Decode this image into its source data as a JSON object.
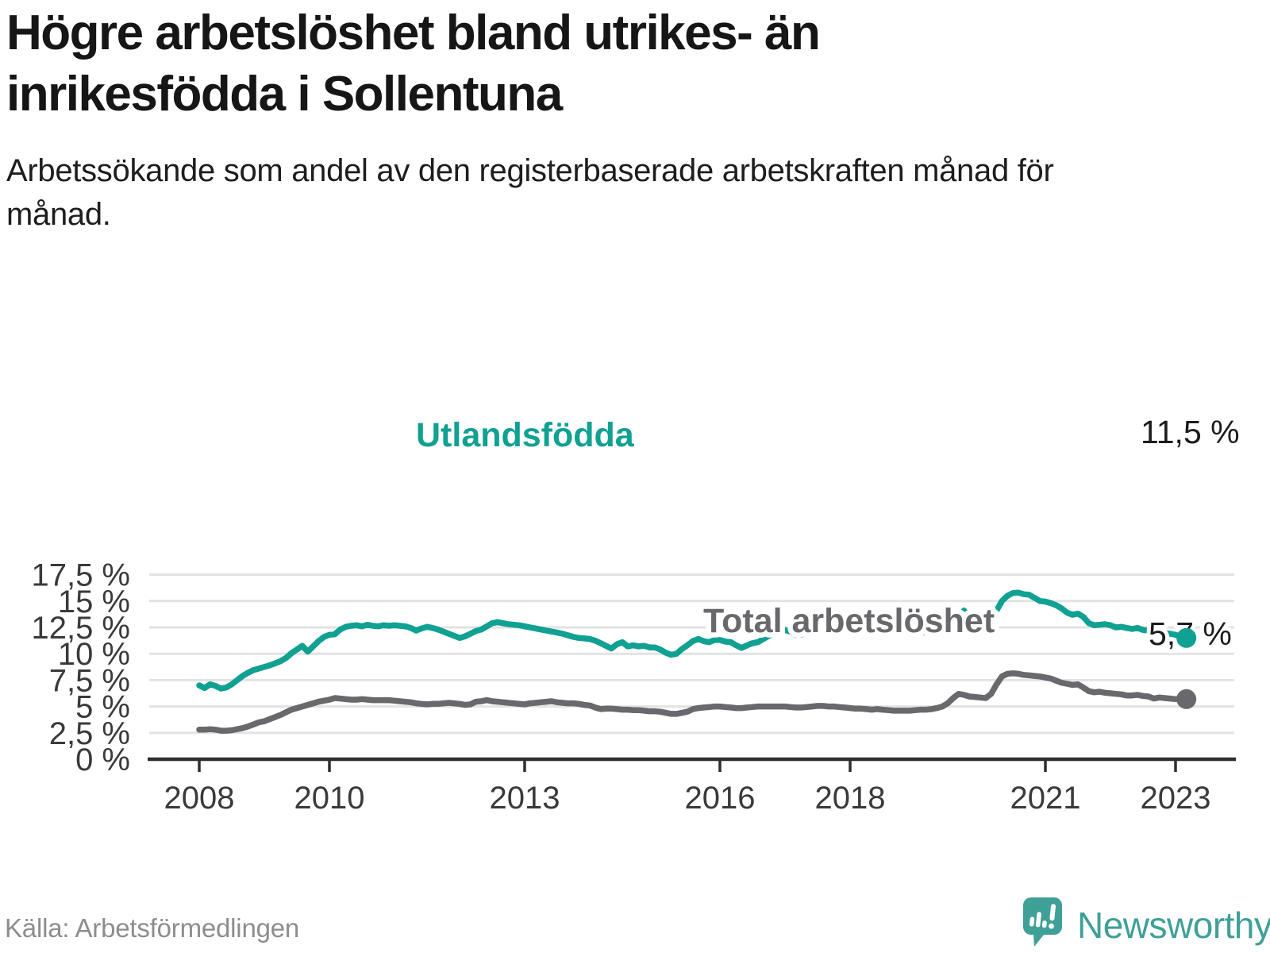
{
  "title": "Högre arbetslöshet bland utrikes- än inrikesfödda i Sollentuna",
  "subtitle": "Arbetssökande som andel av den registerbaserade arbetskraften månad för månad.",
  "source": "Källa: Arbetsförmedlingen",
  "logo": {
    "brand": "Newsworthy",
    "icon": "newsworthy-speech-bubble-bar-chart-icon",
    "color": "#3fa097"
  },
  "chart_data": {
    "type": "line",
    "title": "Högre arbetslöshet bland utrikes- än inrikesfödda i Sollentuna",
    "subtitle": "Arbetssökande som andel av den registerbaserade arbetskraften månad för månad.",
    "frequency": "monthly",
    "x_start": "2008-01",
    "x_end": "2023-03",
    "x_ticks": [
      "2008",
      "2010",
      "2013",
      "2016",
      "2018",
      "2021",
      "2023"
    ],
    "y_tick_values": [
      0,
      2.5,
      5,
      7.5,
      10,
      12.5,
      15,
      17.5
    ],
    "y_tick_labels": [
      "0 %",
      "2,5 %",
      "5 %",
      "7,5 %",
      "10 %",
      "12,5 %",
      "15 %",
      "17,5 %"
    ],
    "ylim": [
      0,
      17.5
    ],
    "grid": "horizontal",
    "legend_position": "inline-labels",
    "colors": {
      "grid": "#e3e3e3",
      "axis": "#2e2e2e",
      "tick_text": "#3a3a3a",
      "end_label_text": "#1c1c1c"
    },
    "series": [
      {
        "name": "Utlandsfödda",
        "color": "#10a192",
        "end_label": "11,5 %",
        "end_value": 11.5,
        "values": [
          7.0,
          6.75,
          7.1,
          6.95,
          6.7,
          6.8,
          7.1,
          7.5,
          7.9,
          8.2,
          8.45,
          8.6,
          8.75,
          8.9,
          9.1,
          9.3,
          9.6,
          10.05,
          10.4,
          10.75,
          10.2,
          10.7,
          11.2,
          11.6,
          11.8,
          11.85,
          12.3,
          12.55,
          12.65,
          12.7,
          12.6,
          12.75,
          12.65,
          12.6,
          12.7,
          12.65,
          12.7,
          12.65,
          12.6,
          12.45,
          12.2,
          12.4,
          12.55,
          12.45,
          12.3,
          12.1,
          11.9,
          11.7,
          11.5,
          11.65,
          11.9,
          12.15,
          12.3,
          12.6,
          12.9,
          13.0,
          12.9,
          12.8,
          12.75,
          12.7,
          12.6,
          12.5,
          12.4,
          12.3,
          12.2,
          12.1,
          12.0,
          11.9,
          11.75,
          11.6,
          11.5,
          11.45,
          11.4,
          11.25,
          11.0,
          10.75,
          10.5,
          10.9,
          11.1,
          10.7,
          10.8,
          10.7,
          10.75,
          10.6,
          10.6,
          10.4,
          10.1,
          9.9,
          10.0,
          10.45,
          10.8,
          11.2,
          11.4,
          11.2,
          11.1,
          11.3,
          11.3,
          11.15,
          11.1,
          10.8,
          10.55,
          10.8,
          11.0,
          11.1,
          11.4,
          11.7,
          11.9,
          12.2,
          12.25,
          12.1,
          11.8,
          11.8,
          12.1,
          12.3,
          12.7,
          12.8,
          12.6,
          12.65,
          12.5,
          12.6,
          12.35,
          12.2,
          12.4,
          12.45,
          12.5,
          12.85,
          12.7,
          12.6,
          12.4,
          12.3,
          12.25,
          12.2,
          12.25,
          12.15,
          12.0,
          11.85,
          12.2,
          12.5,
          12.8,
          13.2,
          13.6,
          14.1,
          13.4,
          12.5,
          12.15,
          12.1,
          13.3,
          14.1,
          15.0,
          15.5,
          15.75,
          15.8,
          15.65,
          15.6,
          15.3,
          15.0,
          14.95,
          14.8,
          14.6,
          14.3,
          13.9,
          13.7,
          13.8,
          13.5,
          12.9,
          12.7,
          12.75,
          12.8,
          12.7,
          12.5,
          12.55,
          12.45,
          12.35,
          12.45,
          12.25,
          12.2,
          12.35,
          12.05,
          11.95,
          11.9,
          11.8,
          11.6,
          11.5
        ]
      },
      {
        "name": "Total arbetslöshet",
        "color": "#69696d",
        "end_label": "5,7 %",
        "end_value": 5.7,
        "values": [
          2.8,
          2.8,
          2.85,
          2.8,
          2.7,
          2.7,
          2.75,
          2.85,
          2.95,
          3.1,
          3.3,
          3.5,
          3.6,
          3.8,
          4.0,
          4.2,
          4.45,
          4.7,
          4.85,
          5.0,
          5.15,
          5.3,
          5.45,
          5.55,
          5.65,
          5.8,
          5.75,
          5.7,
          5.65,
          5.65,
          5.7,
          5.65,
          5.6,
          5.6,
          5.6,
          5.6,
          5.55,
          5.5,
          5.45,
          5.4,
          5.3,
          5.25,
          5.2,
          5.25,
          5.25,
          5.3,
          5.35,
          5.3,
          5.25,
          5.15,
          5.2,
          5.45,
          5.5,
          5.6,
          5.5,
          5.45,
          5.4,
          5.35,
          5.3,
          5.25,
          5.2,
          5.3,
          5.35,
          5.4,
          5.45,
          5.5,
          5.4,
          5.35,
          5.3,
          5.3,
          5.25,
          5.15,
          5.1,
          4.9,
          4.75,
          4.8,
          4.8,
          4.75,
          4.7,
          4.7,
          4.65,
          4.65,
          4.6,
          4.55,
          4.55,
          4.5,
          4.4,
          4.3,
          4.3,
          4.4,
          4.5,
          4.75,
          4.85,
          4.9,
          4.95,
          5.0,
          5.0,
          4.95,
          4.9,
          4.85,
          4.85,
          4.9,
          4.95,
          5.0,
          5.0,
          5.0,
          5.0,
          5.0,
          5.0,
          4.95,
          4.9,
          4.9,
          4.95,
          5.0,
          5.05,
          5.05,
          5.0,
          5.0,
          4.95,
          4.9,
          4.85,
          4.8,
          4.8,
          4.75,
          4.7,
          4.75,
          4.7,
          4.65,
          4.6,
          4.6,
          4.6,
          4.6,
          4.65,
          4.7,
          4.7,
          4.75,
          4.85,
          5.0,
          5.3,
          5.8,
          6.2,
          6.1,
          5.95,
          5.9,
          5.85,
          5.8,
          6.2,
          7.1,
          7.85,
          8.1,
          8.15,
          8.1,
          8.0,
          7.95,
          7.9,
          7.85,
          7.75,
          7.65,
          7.45,
          7.25,
          7.15,
          7.05,
          7.1,
          6.8,
          6.45,
          6.35,
          6.4,
          6.3,
          6.25,
          6.2,
          6.15,
          6.05,
          6.05,
          6.1,
          6.0,
          5.95,
          5.75,
          5.85,
          5.8,
          5.75,
          5.7,
          5.7,
          5.7
        ]
      }
    ]
  }
}
